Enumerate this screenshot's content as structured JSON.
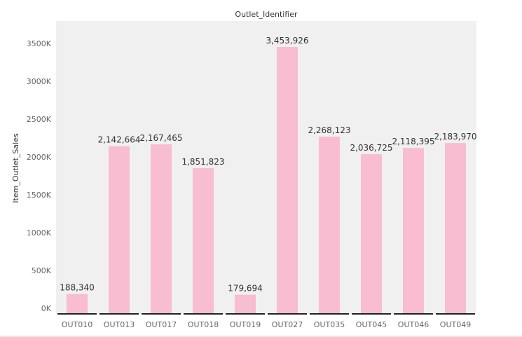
{
  "chart_data": {
    "type": "bar",
    "title": "Outlet_Identifier",
    "xlabel": "",
    "ylabel": "Item_Outlet_Sales",
    "categories": [
      "OUT010",
      "OUT013",
      "OUT017",
      "OUT018",
      "OUT019",
      "OUT027",
      "OUT035",
      "OUT045",
      "OUT046",
      "OUT049"
    ],
    "values": [
      188340,
      2142664,
      2167465,
      1851823,
      179694,
      3453926,
      2268123,
      2036725,
      2118395,
      2183970
    ],
    "value_labels": [
      "188,340",
      "2,142,664",
      "2,167,465",
      "1,851,823",
      "179,694",
      "3,453,926",
      "2,268,123",
      "2,036,725",
      "2,118,395",
      "2,183,970"
    ],
    "ylim": [
      0,
      3750000
    ],
    "yticks": [
      0,
      500000,
      1000000,
      1500000,
      2000000,
      2500000,
      3000000,
      3500000
    ],
    "ytick_labels": [
      "0K",
      "500K",
      "1000K",
      "1500K",
      "2000K",
      "2500K",
      "3000K",
      "3500K"
    ],
    "bar_color": "#f8bdd0",
    "plot_background": "#f0f0f0",
    "grid": false,
    "legend": "none"
  }
}
